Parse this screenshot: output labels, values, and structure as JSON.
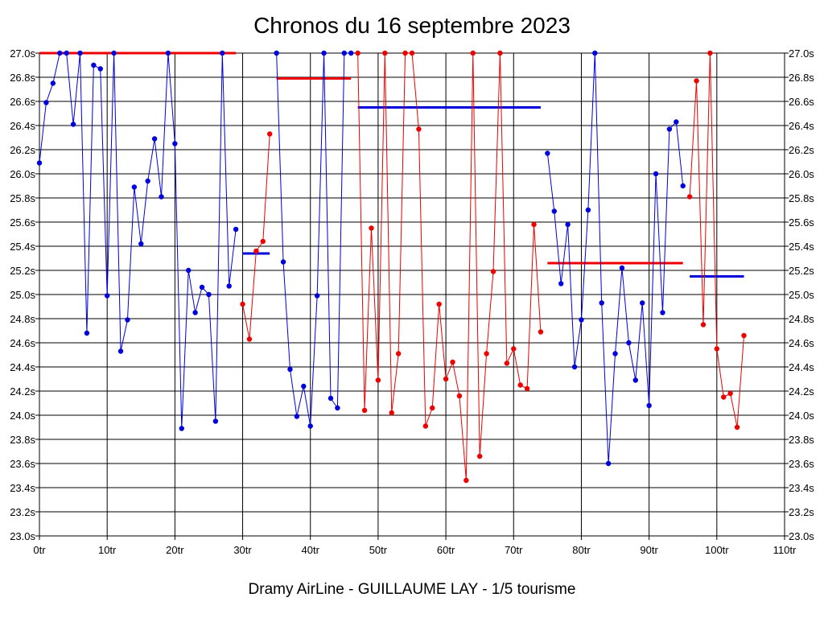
{
  "chart_data": {
    "type": "line",
    "title": "Chronos du 16 septembre 2023",
    "subtitle": "Dramy AirLine - GUILLAUME LAY - 1/5 tourisme",
    "xlabel": "",
    "ylabel": "",
    "xlim": [
      0,
      110
    ],
    "ylim": [
      23.0,
      27.0
    ],
    "x_ticks": [
      0,
      10,
      20,
      30,
      40,
      50,
      60,
      70,
      80,
      90,
      100,
      110
    ],
    "x_tick_suffix": "tr",
    "y_ticks": [
      23.0,
      23.2,
      23.4,
      23.6,
      23.8,
      24.0,
      24.2,
      24.4,
      24.6,
      24.8,
      25.0,
      25.2,
      25.4,
      25.6,
      25.8,
      26.0,
      26.2,
      26.4,
      26.6,
      26.8,
      27.0
    ],
    "y_tick_suffix": "s",
    "grid": true,
    "colors": {
      "blue": "#0000dd",
      "red": "#ee0000"
    },
    "series": [
      {
        "color": "#0000dd",
        "x": [
          0,
          1,
          2,
          3,
          4,
          5,
          6,
          7,
          8,
          9,
          10,
          11,
          12,
          13,
          14,
          15,
          16,
          17,
          18,
          19,
          20,
          21,
          22,
          23,
          24,
          25,
          26,
          27,
          28,
          29
        ],
        "y": [
          26.09,
          26.59,
          26.75,
          27.0,
          27.0,
          26.41,
          27.0,
          24.68,
          26.9,
          26.87,
          24.99,
          27.0,
          24.53,
          24.79,
          25.89,
          25.42,
          25.94,
          26.29,
          25.81,
          27.0,
          26.25,
          23.89,
          25.2,
          24.85,
          25.06,
          25.0,
          23.95,
          27.0,
          25.07,
          25.54
        ]
      },
      {
        "color": "#ee0000",
        "x": [
          30,
          31,
          32,
          33,
          34
        ],
        "y": [
          24.92,
          24.63,
          25.36,
          25.44,
          26.33
        ]
      },
      {
        "color": "#0000dd",
        "x": [
          35,
          36,
          37,
          38,
          39,
          40,
          41,
          42,
          43,
          44,
          45,
          46
        ],
        "y": [
          27.0,
          25.27,
          24.38,
          23.99,
          24.24,
          23.91,
          24.99,
          27.0,
          24.14,
          24.06,
          27.0,
          27.0
        ]
      },
      {
        "color": "#ee0000",
        "x": [
          47,
          48,
          49,
          50,
          51,
          52,
          53,
          54,
          55,
          56,
          57,
          58,
          59,
          60,
          61,
          62,
          63,
          64,
          65,
          66,
          67,
          68,
          69,
          70,
          71,
          72,
          73,
          74
        ],
        "y": [
          27.0,
          24.04,
          25.55,
          24.29,
          27.0,
          24.02,
          24.51,
          27.0,
          27.0,
          26.37,
          23.91,
          24.06,
          24.92,
          24.3,
          24.44,
          24.16,
          23.46,
          27.0,
          23.66,
          24.51,
          25.19,
          27.0,
          24.43,
          24.55,
          24.25,
          24.22,
          25.58,
          24.69
        ]
      },
      {
        "color": "#0000dd",
        "x": [
          75,
          76,
          77,
          78,
          79,
          80,
          81,
          82,
          83,
          84,
          85,
          86,
          87,
          88,
          89,
          90,
          91,
          92,
          93,
          94,
          95
        ],
        "y": [
          26.17,
          25.69,
          25.09,
          25.58,
          24.4,
          24.79,
          25.7,
          27.0,
          24.93,
          23.6,
          24.51,
          25.22,
          24.6,
          24.29,
          24.93,
          24.08,
          26.0,
          24.85,
          26.37,
          26.43,
          25.9
        ]
      },
      {
        "color": "#ee0000",
        "x": [
          96,
          97,
          98,
          99,
          100,
          101,
          102,
          103,
          104
        ],
        "y": [
          25.81,
          26.77,
          24.75,
          27.0,
          24.55,
          24.15,
          24.18,
          23.9,
          24.66
        ]
      }
    ],
    "averages": [
      {
        "color": "#ee0000",
        "x_start": 0,
        "x_end": 29,
        "value": 27.0
      },
      {
        "color": "#0000dd",
        "x_start": 30,
        "x_end": 34,
        "value": 25.34
      },
      {
        "color": "#ee0000",
        "x_start": 35,
        "x_end": 46,
        "value": 26.79
      },
      {
        "color": "#0000dd",
        "x_start": 47,
        "x_end": 74,
        "value": 26.55
      },
      {
        "color": "#ee0000",
        "x_start": 75,
        "x_end": 95,
        "value": 25.26
      },
      {
        "color": "#0000dd",
        "x_start": 96,
        "x_end": 104,
        "value": 25.15
      }
    ]
  }
}
